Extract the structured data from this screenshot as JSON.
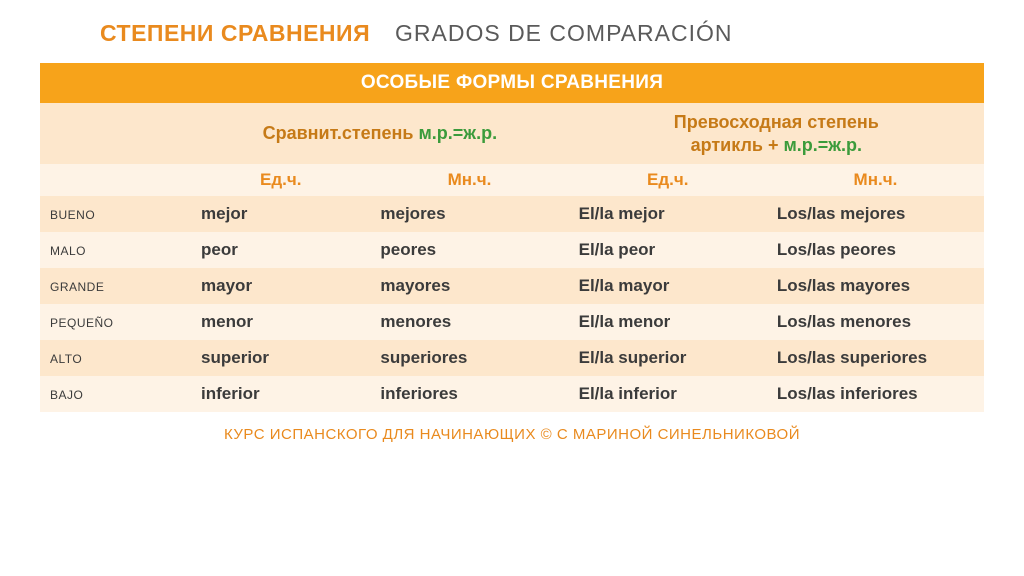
{
  "colors": {
    "orange": "#e98a1e",
    "darkgray": "#5a5a5a",
    "bannerBg": "#f7aништ",
    "banner": "#f7a31a",
    "bannerText": "#ffffff",
    "peach": "#fde7cc",
    "peachLight": "#fef3e6",
    "groupText": "#c67a17",
    "green": "#3b9b3b",
    "rowText": "#3b3b3b"
  },
  "title": {
    "main": "СТЕПЕНИ СРАВНЕНИЯ",
    "sub": "GRADOS DE COMPARACIÓN"
  },
  "tableHeader": {
    "banner": "ОСОБЫЕ ФОРМЫ СРАВНЕНИЯ",
    "group1": {
      "part1": "Сравнит.степень ",
      "part2": "м.р.=ж.р."
    },
    "group2": {
      "line1": "Превосходная степень",
      "line2a": "артикль + ",
      "line2b": "м.р.=ж.р."
    },
    "num": {
      "sg": "Ед.ч.",
      "pl": "Мн.ч."
    }
  },
  "columns": [
    "",
    "comp_sg",
    "comp_pl",
    "sup_sg",
    "sup_pl"
  ],
  "rows": [
    {
      "adj": "bueno",
      "comp_sg": "mejor",
      "comp_pl": "mejores",
      "sup_sg": "El/la mejor",
      "sup_pl": "Los/las mejores"
    },
    {
      "adj": "malo",
      "comp_sg": "peor",
      "comp_pl": "peores",
      "sup_sg": "El/la  peor",
      "sup_pl": "Los/las peores"
    },
    {
      "adj": "grande",
      "comp_sg": "mayor",
      "comp_pl": "mayores",
      "sup_sg": "El/la  mayor",
      "sup_pl": "Los/las mayores"
    },
    {
      "adj": "pequeño",
      "comp_sg": "menor",
      "comp_pl": "menores",
      "sup_sg": "El/la  menor",
      "sup_pl": "Los/las menores"
    },
    {
      "adj": "alto",
      "comp_sg": "superior",
      "comp_pl": "superiores",
      "sup_sg": "El/la  superior",
      "sup_pl": "Los/las superiores"
    },
    {
      "adj": "bajo",
      "comp_sg": "inferior",
      "comp_pl": "inferiores",
      "sup_sg": "El/la  inferior",
      "sup_pl": "Los/las inferiores"
    }
  ],
  "footer": "КУРС ИСПАНСКОГО ДЛЯ НАЧИНАЮЩИХ © С МАРИНОЙ СИНЕЛЬНИКОВОЙ",
  "layout": {
    "colWidths": [
      "16%",
      "19%",
      "21%",
      "21%",
      "23%"
    ],
    "rowAltStart": "a"
  }
}
